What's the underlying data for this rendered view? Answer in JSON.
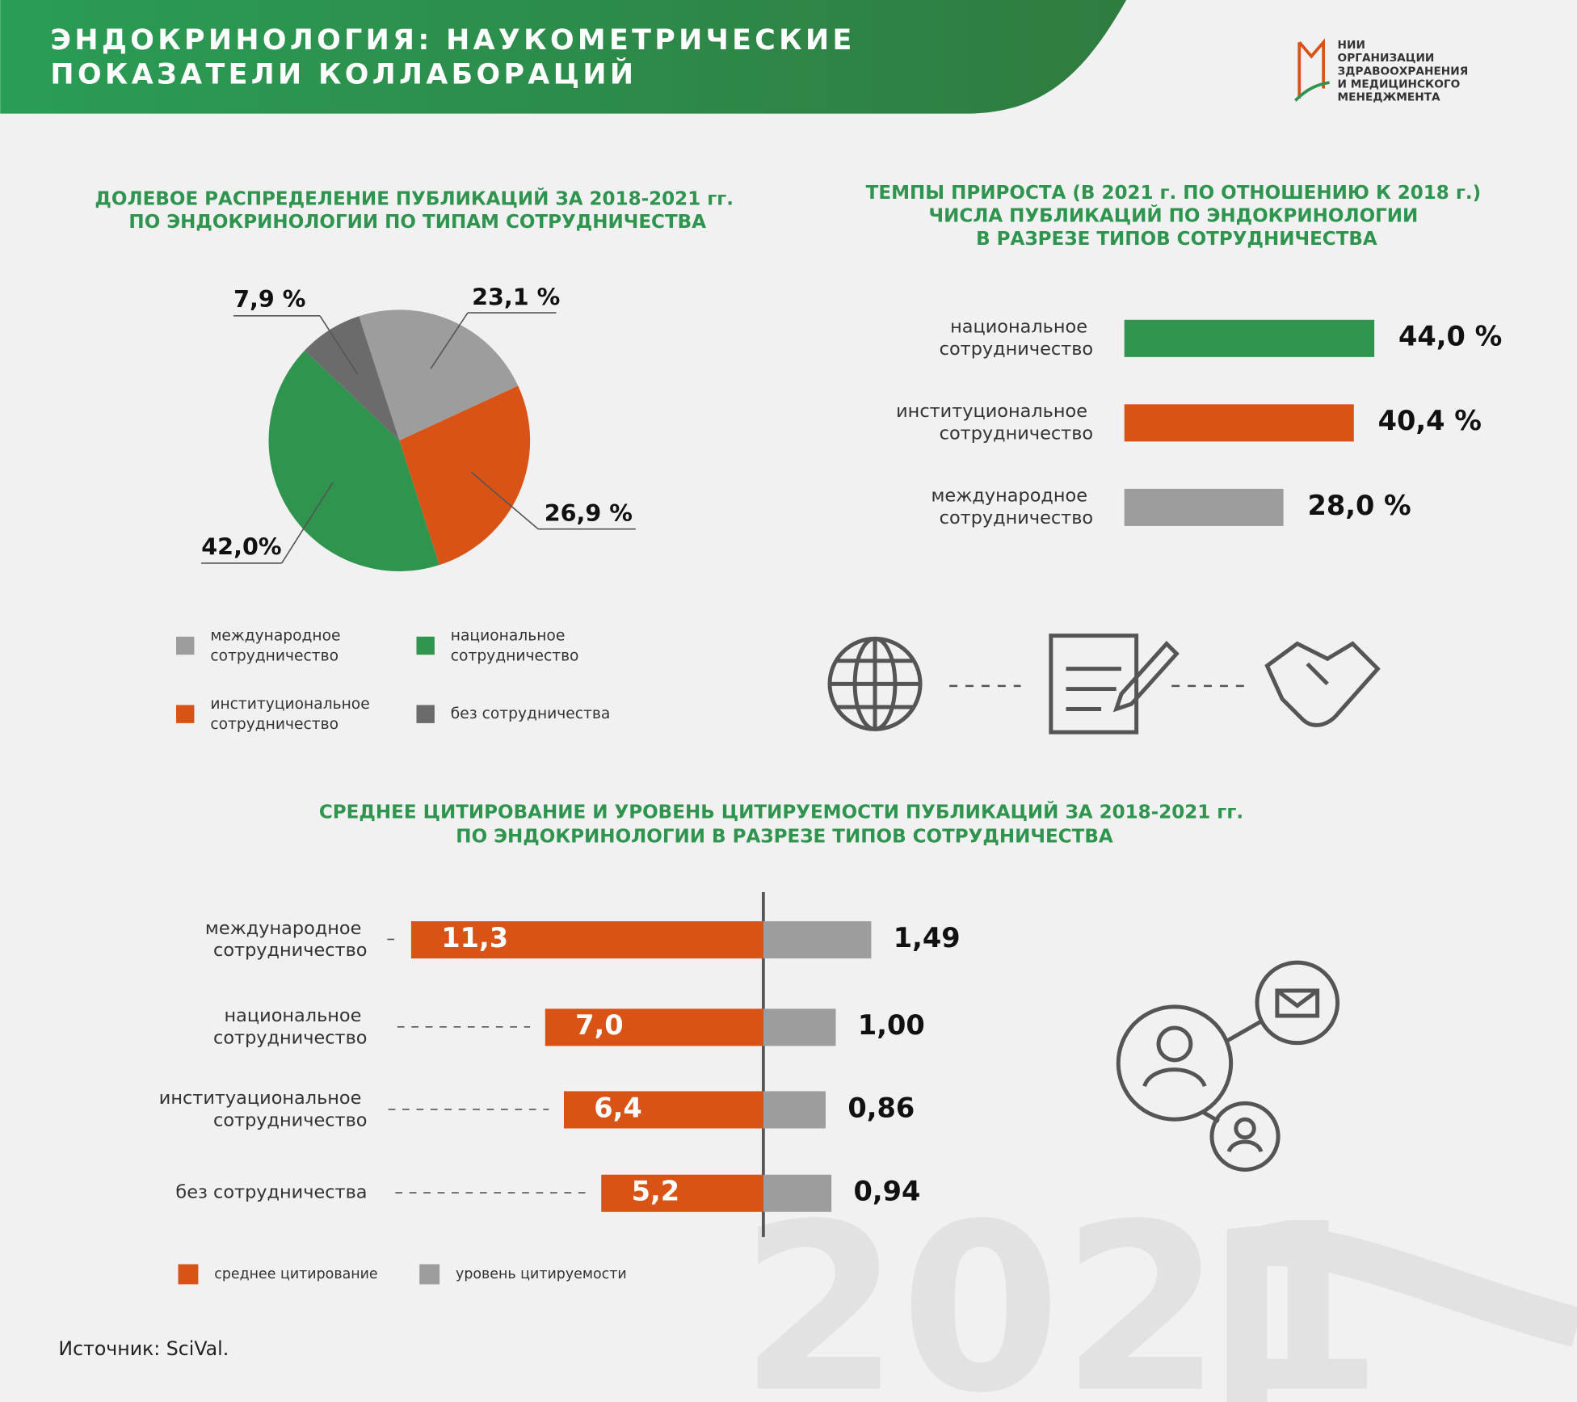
{
  "header": {
    "title": "ЭНДОКРИНОЛОГИЯ: НАУКОМЕТРИЧЕСКИЕ ПОКАЗАТЕЛИ КОЛЛАБОРАЦИЙ",
    "logo": {
      "lines": [
        "НИИ",
        "ОРГАНИЗАЦИИ",
        "ЗДРАВООХРАНЕНИЯ",
        "И МЕДИЦИНСКОГО",
        "МЕНЕДЖМЕНТА"
      ]
    }
  },
  "chart_data": [
    {
      "type": "pie",
      "title": "ДОЛЕВОЕ РАСПРЕДЕЛЕНИЕ ПУБЛИКАЦИЙ ЗА 2018-2021 гг. ПО ЭНДОКРИНОЛОГИИ ПО ТИПАМ СОТРУДНИЧЕСТВА",
      "categories": [
        "международное сотрудничество",
        "институциональное сотрудничество",
        "национальное сотрудничество",
        "без сотрудничества"
      ],
      "values": [
        23.1,
        26.9,
        42.0,
        7.9
      ],
      "value_labels": [
        "23,1 %",
        "26,9 %",
        "42,0%",
        "7,9 %"
      ],
      "colors": [
        "#9d9d9d",
        "#d95316",
        "#2e944e",
        "#6b6b6b"
      ]
    },
    {
      "type": "hbar",
      "title": "ТЕМПЫ ПРИРОСТА (В 2021 г. ПО ОТНОШЕНИЮ К 2018 г.) ЧИСЛА ПУБЛИКАЦИЙ ПО ЭНДОКРИНОЛОГИИ В РАЗРЕЗЕ ТИПОВ СОТРУДНИЧЕСТВА",
      "categories": [
        "национальное сотрудничество",
        "институциональное сотрудничество",
        "международное сотрудничество"
      ],
      "values": [
        44.0,
        40.4,
        28.0
      ],
      "value_labels": [
        "44,0 %",
        "40,4 %",
        "28,0 %"
      ],
      "colors": [
        "#2e944e",
        "#d95316",
        "#9d9d9d"
      ]
    },
    {
      "type": "diverging",
      "title": "СРЕДНЕЕ ЦИТИРОВАНИЕ И УРОВЕНЬ ЦИТИРУЕМОСТИ ПУБЛИКАЦИЙ ЗА 2018-2021 гг. ПО ЭНДОКРИНОЛОГИИ В РАЗРЕЗЕ ТИПОВ СОТРУДНИЧЕСТВА",
      "categories": [
        "международное сотрудничество",
        "национальное сотрудничество",
        "институациональное сотрудничество",
        "без сотрудничества"
      ],
      "series": [
        {
          "name": "среднее цитирование",
          "color": "#d95316",
          "values": [
            11.3,
            7.0,
            6.4,
            5.2
          ],
          "value_labels": [
            "11,3",
            "7,0",
            "6,4",
            "5,2"
          ]
        },
        {
          "name": "уровень цитируемости",
          "color": "#9d9d9d",
          "values": [
            1.49,
            1.0,
            0.86,
            0.94
          ],
          "value_labels": [
            "1,49",
            "1,00",
            "0,86",
            "0,94"
          ]
        }
      ]
    }
  ],
  "watermark": "2021",
  "source": "Источник: SciVal."
}
